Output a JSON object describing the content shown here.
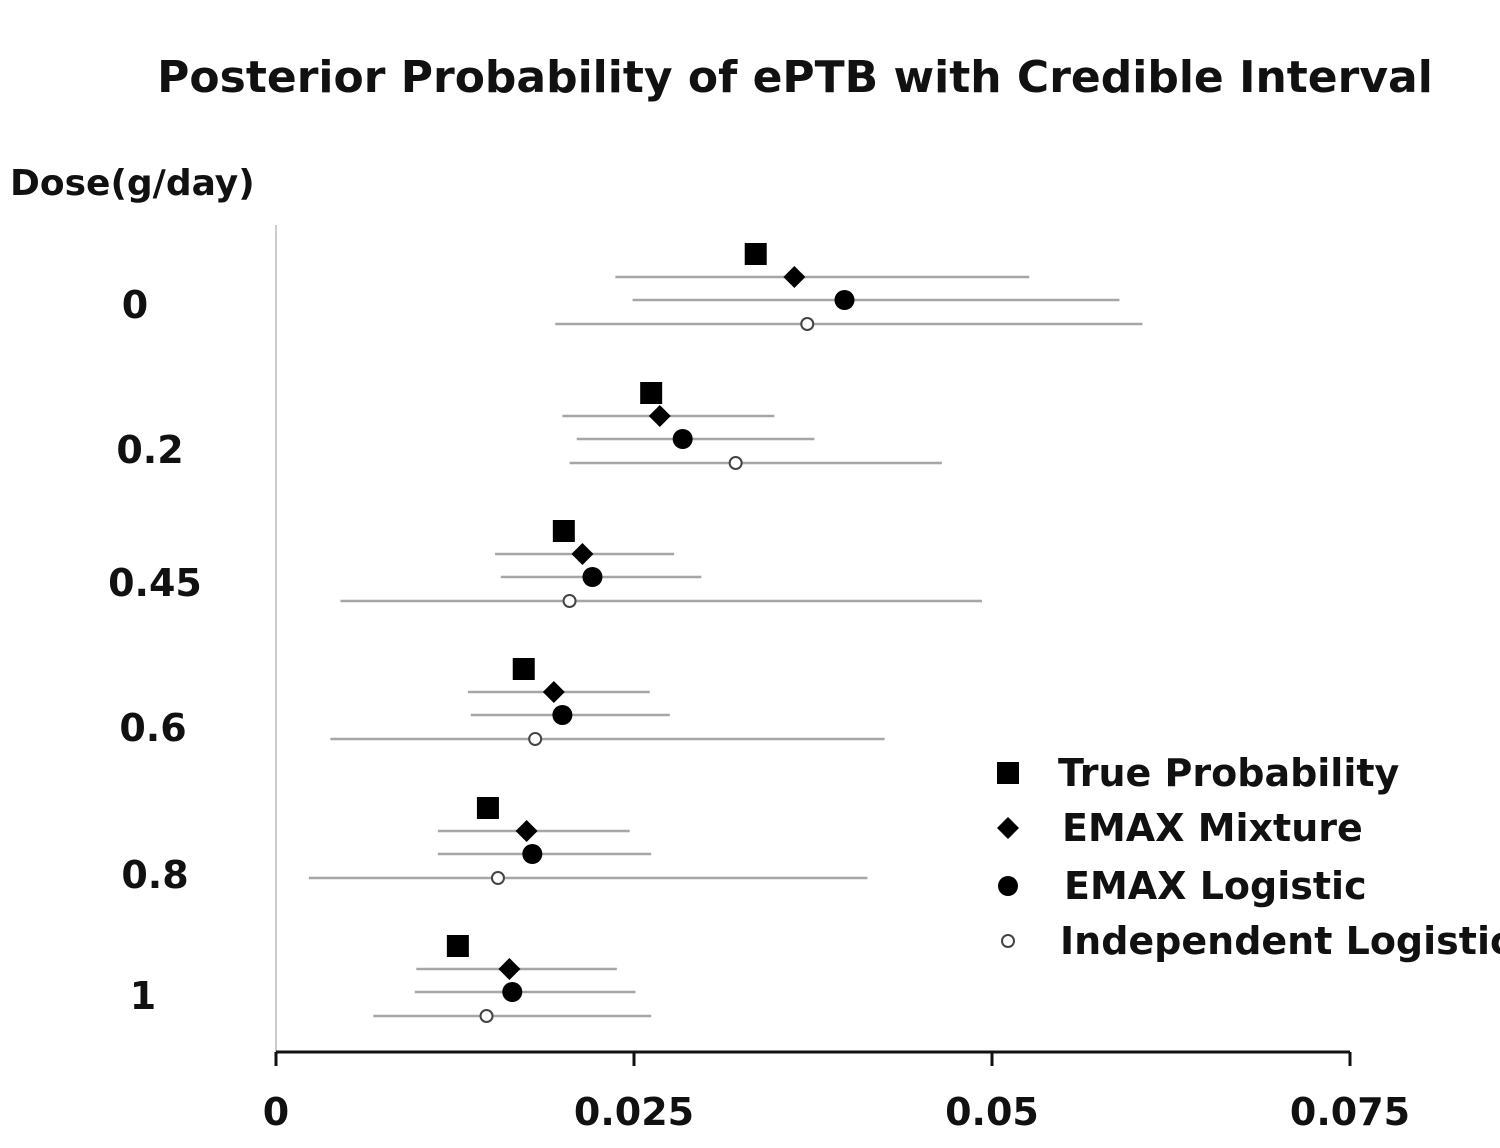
{
  "chart_data": {
    "type": "scatter",
    "title": "Posterior Probability of ePTB with Credible Interval",
    "ylabel": "Dose(g/day)",
    "xlabel": "",
    "xlim": [
      0,
      0.075
    ],
    "xticks": [
      "0",
      "0.025",
      "0.05",
      "0.075"
    ],
    "xtick_values": [
      0,
      0.025,
      0.05,
      0.075
    ],
    "categories": [
      "0",
      "0.2",
      "0.45",
      "0.6",
      "0.8",
      "1"
    ],
    "legend_position": "bottom-right",
    "series": [
      {
        "name": "True Probability",
        "marker": "square",
        "values": [
          0.0335,
          0.0262,
          0.0201,
          0.0173,
          0.0148,
          0.0127
        ],
        "ci_low": [
          null,
          null,
          null,
          null,
          null,
          null
        ],
        "ci_high": [
          null,
          null,
          null,
          null,
          null,
          null
        ]
      },
      {
        "name": "EMAX Mixture",
        "marker": "diamond",
        "values": [
          0.0362,
          0.0268,
          0.0214,
          0.0194,
          0.0175,
          0.0163
        ],
        "ci_low": [
          0.0237,
          0.02,
          0.0153,
          0.0134,
          0.0113,
          0.0098
        ],
        "ci_high": [
          0.0526,
          0.0348,
          0.0278,
          0.0261,
          0.0247,
          0.0238
        ]
      },
      {
        "name": "EMAX Logistic",
        "marker": "circle",
        "values": [
          0.0397,
          0.0284,
          0.0221,
          0.02,
          0.0179,
          0.0165
        ],
        "ci_low": [
          0.0249,
          0.021,
          0.0157,
          0.0136,
          0.0113,
          0.0097
        ],
        "ci_high": [
          0.0589,
          0.0376,
          0.0297,
          0.0275,
          0.0262,
          0.0251
        ]
      },
      {
        "name": "Independent Logistic",
        "marker": "open-circle",
        "values": [
          0.0371,
          0.0321,
          0.0205,
          0.0181,
          0.0155,
          0.0147
        ],
        "ci_low": [
          0.0195,
          0.0205,
          0.0045,
          0.0038,
          0.0023,
          0.0068
        ],
        "ci_high": [
          0.0605,
          0.0465,
          0.0493,
          0.0425,
          0.0413,
          0.0262
        ]
      }
    ]
  }
}
